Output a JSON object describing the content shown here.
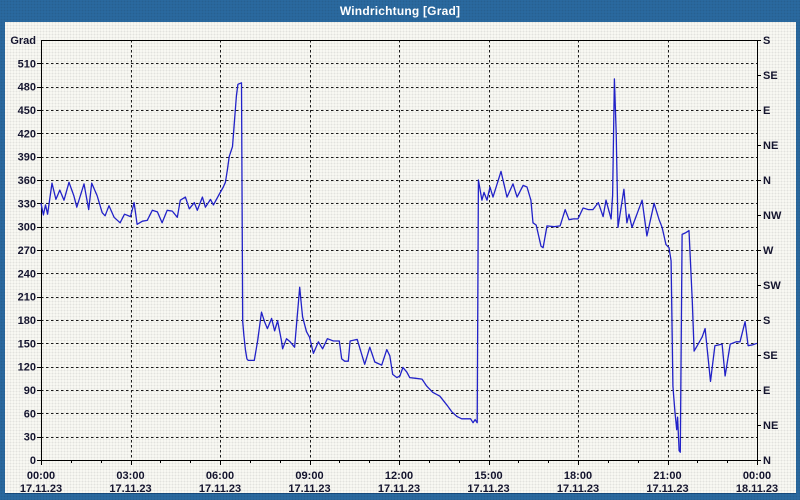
{
  "title": "Windrichtung [Grad]",
  "colors": {
    "window_blue": "#2b6ba2",
    "panel_bg": "#fcfcf6",
    "line": "#2222c8",
    "grid": "#1b1b1b",
    "text": "#14142e",
    "title_text": "#ffffff",
    "separator_dark": "#174e83"
  },
  "chart_data": {
    "type": "line",
    "title": "Windrichtung [Grad]",
    "ylabel_left_unit": "Grad",
    "ylim": [
      0,
      540
    ],
    "xlim_hours": [
      0,
      24
    ],
    "grid": "dashed",
    "legend": "none",
    "y_left_ticks": [
      0,
      30,
      60,
      90,
      120,
      150,
      180,
      210,
      240,
      270,
      300,
      330,
      360,
      390,
      420,
      450,
      480,
      510
    ],
    "y_right_compass": [
      {
        "deg": 0,
        "label": "N"
      },
      {
        "deg": 45,
        "label": "NE"
      },
      {
        "deg": 90,
        "label": "E"
      },
      {
        "deg": 135,
        "label": "SE"
      },
      {
        "deg": 180,
        "label": "S"
      },
      {
        "deg": 225,
        "label": "SW"
      },
      {
        "deg": 270,
        "label": "W"
      },
      {
        "deg": 315,
        "label": "NW"
      },
      {
        "deg": 360,
        "label": "N"
      },
      {
        "deg": 405,
        "label": "NE"
      },
      {
        "deg": 450,
        "label": "E"
      },
      {
        "deg": 495,
        "label": "SE"
      },
      {
        "deg": 540,
        "label": "S"
      }
    ],
    "x_ticks": [
      {
        "time": "00:00",
        "date": "17.11.23"
      },
      {
        "time": "03:00",
        "date": "17.11.23"
      },
      {
        "time": "06:00",
        "date": "17.11.23"
      },
      {
        "time": "09:00",
        "date": "17.11.23"
      },
      {
        "time": "12:00",
        "date": "17.11.23"
      },
      {
        "time": "15:00",
        "date": "17.11.23"
      },
      {
        "time": "18:00",
        "date": "17.11.23"
      },
      {
        "time": "21:00",
        "date": "17.11.23"
      },
      {
        "time": "00:00",
        "date": "18.11.23"
      }
    ],
    "x_minor_tick_hours": 1,
    "series": [
      {
        "name": "Windrichtung",
        "color": "#2222c8",
        "points_hour_deg": [
          [
            0,
            330
          ],
          [
            0.08,
            315
          ],
          [
            0.15,
            328
          ],
          [
            0.22,
            316
          ],
          [
            0.37,
            356
          ],
          [
            0.5,
            335
          ],
          [
            0.63,
            347
          ],
          [
            0.77,
            334
          ],
          [
            0.94,
            357
          ],
          [
            1.1,
            340
          ],
          [
            1.2,
            325
          ],
          [
            1.44,
            355
          ],
          [
            1.6,
            322
          ],
          [
            1.7,
            356
          ],
          [
            1.88,
            340
          ],
          [
            2.05,
            318
          ],
          [
            2.15,
            314
          ],
          [
            2.28,
            327
          ],
          [
            2.45,
            312
          ],
          [
            2.65,
            305
          ],
          [
            2.8,
            316
          ],
          [
            3,
            313
          ],
          [
            3.12,
            331
          ],
          [
            3.22,
            303
          ],
          [
            3.4,
            307
          ],
          [
            3.56,
            308
          ],
          [
            3.73,
            321
          ],
          [
            3.9,
            319
          ],
          [
            4.06,
            305
          ],
          [
            4.23,
            321
          ],
          [
            4.4,
            320
          ],
          [
            4.57,
            312
          ],
          [
            4.67,
            334
          ],
          [
            4.84,
            338
          ],
          [
            4.97,
            323
          ],
          [
            5.14,
            331
          ],
          [
            5.24,
            321
          ],
          [
            5.41,
            338
          ],
          [
            5.51,
            325
          ],
          [
            5.68,
            335
          ],
          [
            5.78,
            328
          ],
          [
            5.98,
            342
          ],
          [
            6.11,
            351
          ],
          [
            6.18,
            357
          ],
          [
            6.25,
            374
          ],
          [
            6.31,
            390
          ],
          [
            6.42,
            403
          ],
          [
            6.48,
            433
          ],
          [
            6.55,
            468
          ],
          [
            6.6,
            483
          ],
          [
            6.72,
            485
          ],
          [
            6.76,
            178
          ],
          [
            6.8,
            160
          ],
          [
            6.85,
            142
          ],
          [
            6.9,
            130
          ],
          [
            6.95,
            128
          ],
          [
            7.15,
            128
          ],
          [
            7.26,
            153
          ],
          [
            7.39,
            190
          ],
          [
            7.49,
            178
          ],
          [
            7.59,
            169
          ],
          [
            7.73,
            182
          ],
          [
            7.83,
            166
          ],
          [
            7.93,
            179
          ],
          [
            8.06,
            153
          ],
          [
            8.1,
            143
          ],
          [
            8.23,
            156
          ],
          [
            8.35,
            152
          ],
          [
            8.5,
            145
          ],
          [
            8.67,
            222
          ],
          [
            8.73,
            199
          ],
          [
            8.77,
            184
          ],
          [
            8.9,
            165
          ],
          [
            9,
            158
          ],
          [
            9.13,
            137
          ],
          [
            9.3,
            152
          ],
          [
            9.44,
            143
          ],
          [
            9.6,
            156
          ],
          [
            9.8,
            153
          ],
          [
            10,
            153
          ],
          [
            10.08,
            130
          ],
          [
            10.18,
            127
          ],
          [
            10.3,
            127
          ],
          [
            10.36,
            153
          ],
          [
            10.6,
            155
          ],
          [
            10.85,
            123
          ],
          [
            11.02,
            145
          ],
          [
            11.19,
            126
          ],
          [
            11.42,
            122
          ],
          [
            11.59,
            142
          ],
          [
            11.69,
            134
          ],
          [
            11.79,
            110
          ],
          [
            11.93,
            106
          ],
          [
            12.03,
            108
          ],
          [
            12.13,
            119
          ],
          [
            12.26,
            113
          ],
          [
            12.36,
            106
          ],
          [
            12.56,
            105
          ],
          [
            12.77,
            104
          ],
          [
            12.93,
            95
          ],
          [
            13.13,
            87
          ],
          [
            13.37,
            82
          ],
          [
            13.6,
            71
          ],
          [
            13.77,
            62
          ],
          [
            13.94,
            56
          ],
          [
            14.1,
            53
          ],
          [
            14.4,
            53
          ],
          [
            14.48,
            48
          ],
          [
            14.55,
            52
          ],
          [
            14.62,
            48
          ],
          [
            14.66,
            360
          ],
          [
            14.78,
            334
          ],
          [
            14.85,
            344
          ],
          [
            14.95,
            334
          ],
          [
            15.05,
            351
          ],
          [
            15.15,
            338
          ],
          [
            15.42,
            371
          ],
          [
            15.62,
            338
          ],
          [
            15.82,
            355
          ],
          [
            15.96,
            338
          ],
          [
            16.16,
            353
          ],
          [
            16.29,
            351
          ],
          [
            16.42,
            334
          ],
          [
            16.49,
            305
          ],
          [
            16.6,
            302
          ],
          [
            16.76,
            275
          ],
          [
            16.83,
            273
          ],
          [
            16.96,
            301
          ],
          [
            17.2,
            300
          ],
          [
            17.4,
            301
          ],
          [
            17.57,
            322
          ],
          [
            17.7,
            309
          ],
          [
            17.85,
            310
          ],
          [
            18,
            310
          ],
          [
            18.17,
            324
          ],
          [
            18.35,
            322
          ],
          [
            18.5,
            322
          ],
          [
            18.68,
            331
          ],
          [
            18.84,
            313
          ],
          [
            18.94,
            334
          ],
          [
            19.11,
            310
          ],
          [
            19.16,
            340
          ],
          [
            19.22,
            490
          ],
          [
            19.28,
            420
          ],
          [
            19.31,
            360
          ],
          [
            19.34,
            299
          ],
          [
            19.54,
            348
          ],
          [
            19.64,
            305
          ],
          [
            19.71,
            316
          ],
          [
            19.81,
            299
          ],
          [
            20.15,
            334
          ],
          [
            20.31,
            288
          ],
          [
            20.55,
            330
          ],
          [
            20.72,
            309
          ],
          [
            20.82,
            299
          ],
          [
            20.95,
            277
          ],
          [
            21.05,
            273
          ],
          [
            21.12,
            256
          ],
          [
            21.18,
            95
          ],
          [
            21.25,
            61
          ],
          [
            21.31,
            39
          ],
          [
            21.34,
            55
          ],
          [
            21.39,
            12
          ],
          [
            21.43,
            10
          ],
          [
            21.49,
            290
          ],
          [
            21.6,
            292
          ],
          [
            21.72,
            295
          ],
          [
            21.83,
            204
          ],
          [
            21.89,
            140
          ],
          [
            21.97,
            145
          ],
          [
            22.16,
            158
          ],
          [
            22.26,
            169
          ],
          [
            22.44,
            101
          ],
          [
            22.59,
            147
          ],
          [
            22.83,
            149
          ],
          [
            22.93,
            108
          ],
          [
            23.1,
            149
          ],
          [
            23.3,
            152
          ],
          [
            23.43,
            152
          ],
          [
            23.6,
            178
          ],
          [
            23.7,
            147
          ],
          [
            23.85,
            148
          ],
          [
            24,
            150
          ]
        ]
      }
    ]
  }
}
